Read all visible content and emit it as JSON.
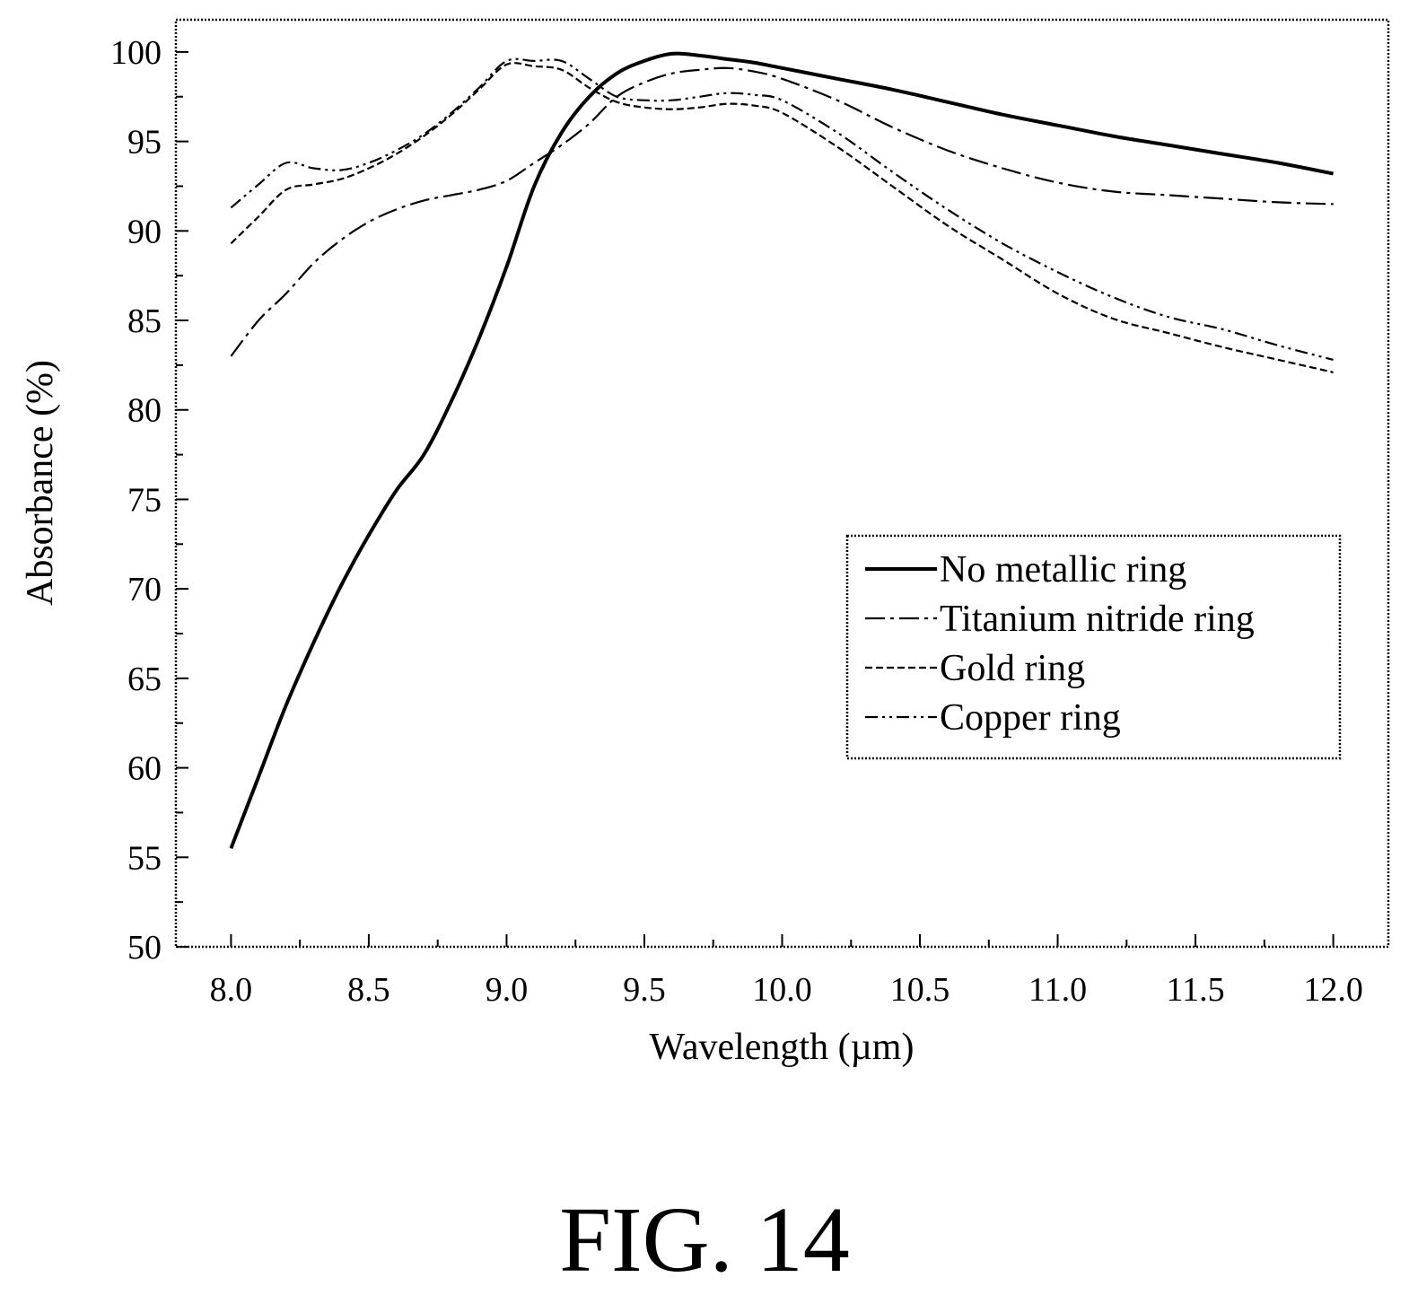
{
  "figure_label": "FIG. 14",
  "chart_data": {
    "type": "line",
    "title": "",
    "xlabel": "Wavelength (µm)",
    "ylabel": "Absorbance (%)",
    "xlim": [
      7.8,
      12.2
    ],
    "ylim": [
      50,
      101.8
    ],
    "x_ticks": [
      8.0,
      8.5,
      9.0,
      9.5,
      10.0,
      10.5,
      11.0,
      11.5,
      12.0
    ],
    "x_tick_labels": [
      "8.0",
      "8.5",
      "9.0",
      "9.5",
      "10.0",
      "10.5",
      "11.0",
      "11.5",
      "12.0"
    ],
    "y_ticks": [
      50,
      55,
      60,
      65,
      70,
      75,
      80,
      85,
      90,
      95,
      100
    ],
    "y_tick_labels": [
      "50",
      "55",
      "60",
      "65",
      "70",
      "75",
      "80",
      "85",
      "90",
      "95",
      "100"
    ],
    "grid": false,
    "legend_position": "center-right",
    "series": [
      {
        "name": "No metallic ring",
        "style": "solid",
        "x": [
          8.0,
          8.1,
          8.2,
          8.3,
          8.4,
          8.5,
          8.6,
          8.7,
          8.8,
          8.9,
          9.0,
          9.1,
          9.2,
          9.3,
          9.4,
          9.5,
          9.6,
          9.7,
          9.8,
          9.9,
          10.0,
          10.2,
          10.4,
          10.6,
          10.8,
          11.0,
          11.2,
          11.4,
          11.6,
          11.8,
          12.0
        ],
        "y": [
          55.5,
          59.5,
          63.5,
          67.0,
          70.2,
          73.0,
          75.5,
          77.5,
          80.5,
          84.0,
          88.0,
          92.5,
          95.5,
          97.5,
          98.8,
          99.5,
          99.9,
          99.8,
          99.6,
          99.4,
          99.1,
          98.5,
          97.9,
          97.2,
          96.5,
          95.9,
          95.3,
          94.8,
          94.3,
          93.8,
          93.2
        ]
      },
      {
        "name": "Titanium nitride ring",
        "style": "dash-dot",
        "x": [
          8.0,
          8.1,
          8.2,
          8.3,
          8.4,
          8.5,
          8.6,
          8.7,
          8.8,
          8.9,
          9.0,
          9.1,
          9.2,
          9.3,
          9.4,
          9.5,
          9.6,
          9.7,
          9.8,
          9.9,
          10.0,
          10.2,
          10.4,
          10.6,
          10.8,
          11.0,
          11.2,
          11.4,
          11.6,
          11.8,
          12.0
        ],
        "y": [
          83.0,
          85.0,
          86.5,
          88.2,
          89.5,
          90.5,
          91.2,
          91.7,
          92.0,
          92.3,
          92.8,
          93.8,
          94.8,
          96.0,
          97.5,
          98.3,
          98.8,
          99.0,
          99.1,
          98.9,
          98.5,
          97.3,
          95.8,
          94.5,
          93.5,
          92.7,
          92.2,
          92.0,
          91.8,
          91.6,
          91.5
        ]
      },
      {
        "name": "Gold ring",
        "style": "dashed",
        "x": [
          8.0,
          8.1,
          8.2,
          8.3,
          8.4,
          8.5,
          8.6,
          8.7,
          8.8,
          8.9,
          9.0,
          9.1,
          9.2,
          9.3,
          9.4,
          9.5,
          9.6,
          9.7,
          9.8,
          9.9,
          10.0,
          10.2,
          10.4,
          10.6,
          10.8,
          11.0,
          11.2,
          11.4,
          11.6,
          11.8,
          12.0
        ],
        "y": [
          89.3,
          90.8,
          92.3,
          92.6,
          92.9,
          93.5,
          94.3,
          95.3,
          96.5,
          97.9,
          99.3,
          99.2,
          99.0,
          98.0,
          97.2,
          96.9,
          96.8,
          96.9,
          97.1,
          97.0,
          96.6,
          94.7,
          92.5,
          90.3,
          88.4,
          86.5,
          85.1,
          84.3,
          83.5,
          82.8,
          82.1
        ]
      },
      {
        "name": "Copper ring",
        "style": "dash-dot-dot",
        "x": [
          8.0,
          8.1,
          8.2,
          8.3,
          8.4,
          8.5,
          8.6,
          8.7,
          8.8,
          8.9,
          9.0,
          9.1,
          9.2,
          9.3,
          9.4,
          9.5,
          9.6,
          9.7,
          9.8,
          9.9,
          10.0,
          10.2,
          10.4,
          10.6,
          10.8,
          11.0,
          11.2,
          11.4,
          11.6,
          11.8,
          12.0
        ],
        "y": [
          91.3,
          92.6,
          93.8,
          93.5,
          93.4,
          93.8,
          94.5,
          95.4,
          96.6,
          98.0,
          99.5,
          99.5,
          99.5,
          98.5,
          97.5,
          97.3,
          97.3,
          97.5,
          97.7,
          97.6,
          97.3,
          95.5,
          93.3,
          91.2,
          89.3,
          87.7,
          86.3,
          85.2,
          84.5,
          83.6,
          82.8
        ]
      }
    ]
  }
}
